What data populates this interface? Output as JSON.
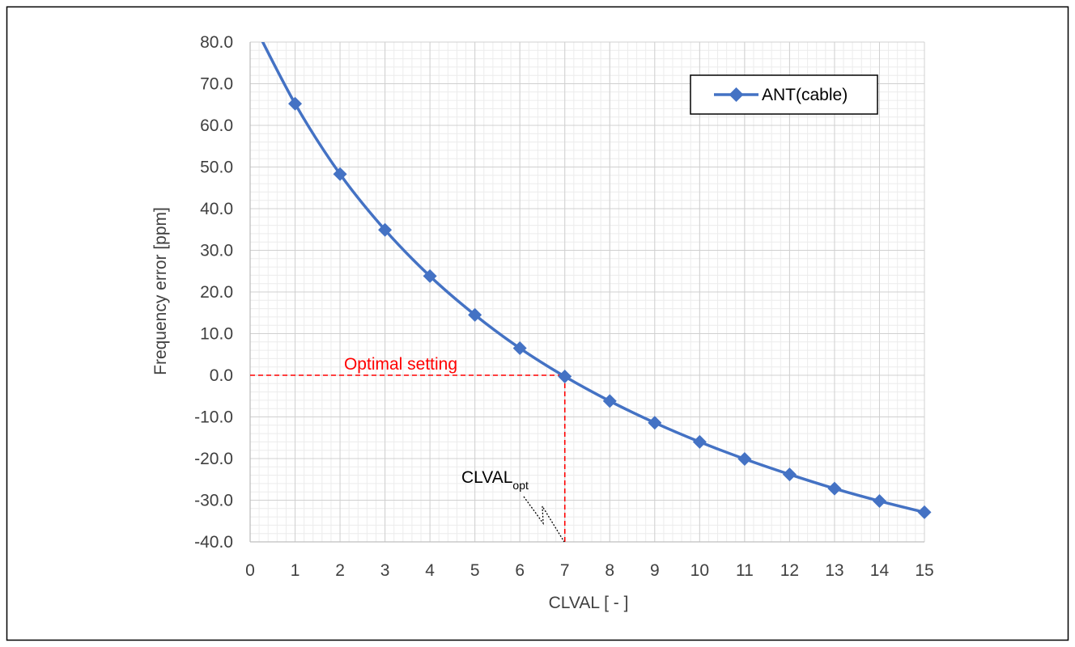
{
  "chart_data": {
    "type": "line",
    "xlabel": "CLVAL [ - ]",
    "ylabel": "Frequency error [ppm]",
    "xlim": [
      0,
      15
    ],
    "ylim": [
      -40,
      80
    ],
    "x_ticks": [
      "0",
      "1",
      "2",
      "3",
      "4",
      "5",
      "6",
      "7",
      "8",
      "9",
      "10",
      "11",
      "12",
      "13",
      "14",
      "15"
    ],
    "y_ticks": [
      "80.0",
      "70.0",
      "60.0",
      "50.0",
      "40.0",
      "30.0",
      "20.0",
      "10.0",
      "0.0",
      "-10.0",
      "-20.0",
      "-30.0",
      "-40.0"
    ],
    "grid": true,
    "legend_position": "top-right",
    "series": [
      {
        "name": "ANT(cable)",
        "color": "#4472c4",
        "marker": "diamond",
        "x": [
          0,
          1,
          2,
          3,
          4,
          5,
          6,
          7,
          8,
          9,
          10,
          11,
          12,
          13,
          14,
          15
        ],
        "y": [
          86.0,
          65.2,
          48.3,
          34.9,
          23.8,
          14.5,
          6.5,
          -0.3,
          -6.2,
          -11.4,
          -16.0,
          -20.1,
          -23.8,
          -27.2,
          -30.2,
          -32.9
        ]
      }
    ],
    "annotations": {
      "optimal_label": "Optimal setting",
      "optimal_color": "#ff0000",
      "optimal_x": 7,
      "optimal_y": 0,
      "callout_main": "CLVAL",
      "callout_sub": "opt"
    }
  }
}
